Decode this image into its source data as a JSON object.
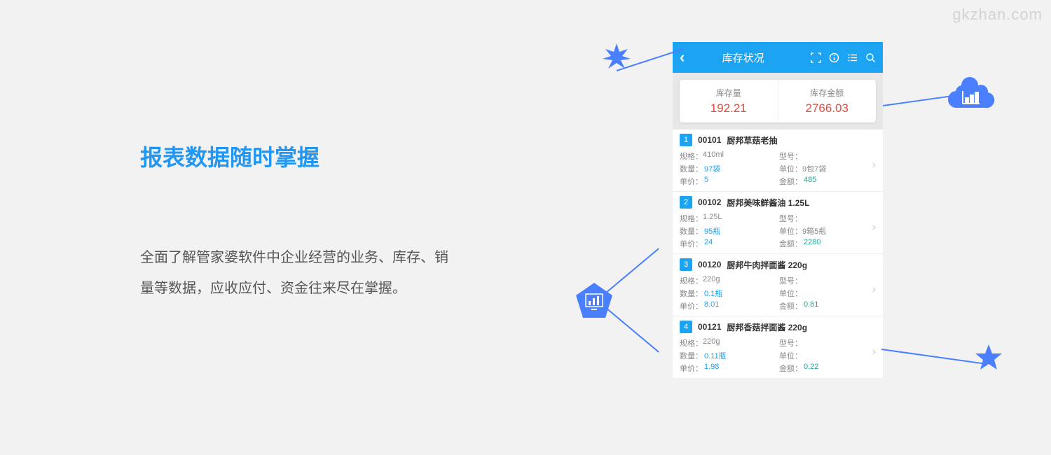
{
  "watermark": "gkzhan.com",
  "left": {
    "title": "报表数据随时掌握",
    "description": "全面了解管家婆软件中企业经营的业务、库存、销量等数据，应收应付、资金往来尽在掌握。"
  },
  "phone": {
    "header_title": "库存状况",
    "summary": [
      {
        "label": "库存量",
        "value": "192.21"
      },
      {
        "label": "库存金额",
        "value": "2766.03"
      }
    ],
    "labels": {
      "spec": "规格：",
      "model": "型号：",
      "qty": "数量：",
      "unit": "单位：",
      "price": "单价：",
      "amount": "金额："
    },
    "items": [
      {
        "idx": "1",
        "code": "00101",
        "name": "厨邦草菇老抽",
        "spec": "410ml",
        "model": "",
        "qty": "97袋",
        "unit": "9包7袋",
        "price": "5",
        "amount": "485"
      },
      {
        "idx": "2",
        "code": "00102",
        "name": "厨邦美味鲜酱油 1.25L",
        "spec": "1.25L",
        "model": "",
        "qty": "95瓶",
        "unit": "9箱5瓶",
        "price": "24",
        "amount": "2280"
      },
      {
        "idx": "3",
        "code": "00120",
        "name": "厨邦牛肉拌面酱 220g",
        "spec": "220g",
        "model": "",
        "qty": "0.1瓶",
        "unit": "",
        "price": "8.01",
        "amount": "0.81"
      },
      {
        "idx": "4",
        "code": "00121",
        "name": "厨邦香菇拌面酱 220g",
        "spec": "220g",
        "model": "",
        "qty": "0.11瓶",
        "unit": "",
        "price": "1.98",
        "amount": "0.22"
      }
    ]
  },
  "colors": {
    "accent": "#1ca4f3",
    "deco": "#4a7fff",
    "value_red": "#e74c3c",
    "value_teal": "#26a69a",
    "bg": "#f2f2f2"
  }
}
